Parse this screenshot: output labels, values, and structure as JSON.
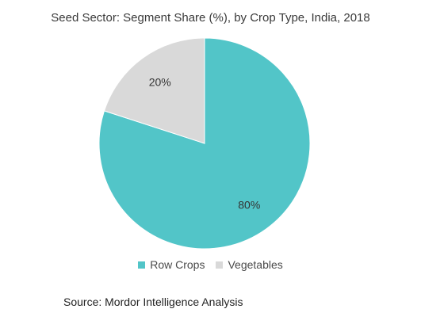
{
  "chart_data": {
    "type": "pie",
    "title": "Seed Sector: Segment Share (%), by Crop Type, India, 2018",
    "categories": [
      "Row Crops",
      "Vegetables"
    ],
    "values": [
      80,
      20
    ],
    "labels": [
      "80%",
      "20%"
    ],
    "colors": [
      "#52c5c8",
      "#d9d9d9"
    ],
    "legend_position": "bottom"
  },
  "source": "Source: Mordor Intelligence Analysis"
}
